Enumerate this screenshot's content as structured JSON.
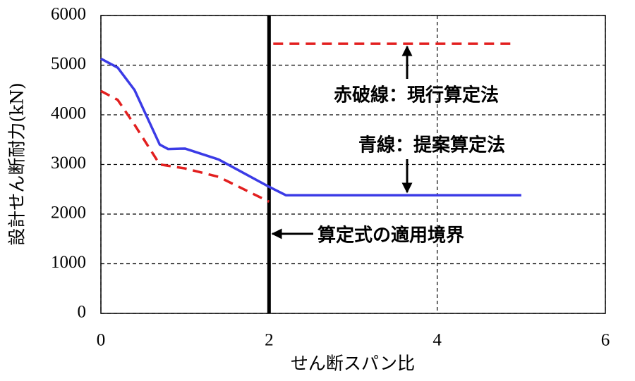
{
  "chart_data": {
    "type": "line",
    "x_label": "せん断スパン比",
    "y_label": "設計せん断耐力(kN)",
    "xlim": [
      0,
      6
    ],
    "xticks": [
      0,
      2,
      4,
      6
    ],
    "ylim": [
      0,
      6000
    ],
    "yticks": [
      0,
      1000,
      2000,
      3000,
      4000,
      5000,
      6000
    ],
    "grid": true,
    "boundary": 2,
    "series": [
      {
        "name": "青線：提案算定法",
        "color": "#3b3be6",
        "dashed": false,
        "x": [
          0,
          0.2,
          0.4,
          0.7,
          0.8,
          1,
          1.4,
          2,
          2.2,
          5
        ],
        "values": [
          5130,
          4950,
          4500,
          3400,
          3310,
          3320,
          3100,
          2550,
          2380,
          2380
        ]
      },
      {
        "name": "赤破線：現行算定法",
        "color": "#e21f1f",
        "dashed": true,
        "x": [
          0,
          0.2,
          0.4,
          0.7,
          1,
          1.4,
          2,
          2,
          2.05,
          4.9
        ],
        "values": [
          4480,
          4300,
          3800,
          3000,
          2920,
          2750,
          2250,
          null,
          5430,
          5430
        ]
      }
    ],
    "annotations": [
      "赤破線：現行算定法",
      "青線：提案算定法",
      "算定式の適用境界"
    ]
  }
}
